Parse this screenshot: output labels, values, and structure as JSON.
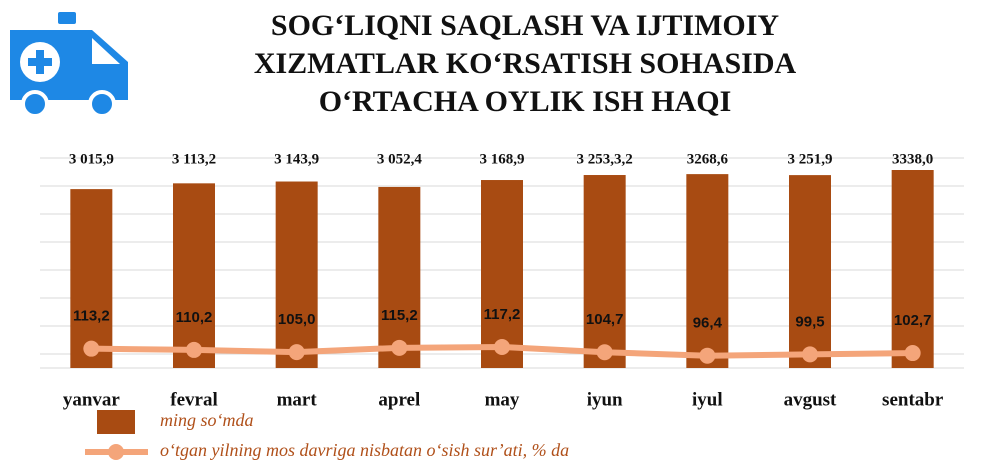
{
  "chart_data": {
    "type": "bar",
    "title": [
      "SOG‘LIQNI SAQLASH VA IJTIMOIY",
      "XIZMATLAR KO‘RSATISH SOHASIDA",
      "O‘RTACHA OYLIK ISH HAQI"
    ],
    "categories": [
      "yanvar",
      "fevral",
      "mart",
      "aprel",
      "may",
      "iyun",
      "iyul",
      "avgust",
      "sentabr"
    ],
    "series": [
      {
        "name": "ming so‘mda",
        "type": "bar",
        "color": "#a84b12",
        "values": [
          3015.9,
          3113.2,
          3143.9,
          3052.4,
          3168.9,
          3253.3,
          3268.6,
          3251.9,
          3338.0
        ],
        "value_labels": [
          "3 015,9",
          "3 113,2",
          "3 143,9",
          "3 052,4",
          "3 168,9",
          "3 253,3,2",
          "3268,6",
          "3 251,9",
          "3338,0"
        ]
      },
      {
        "name": "o‘tgan yilning mos davriga nisbatan o‘sish sur’ati, % da",
        "type": "line",
        "color": "#f4a57a",
        "values": [
          113.2,
          110.2,
          105.0,
          115.2,
          117.2,
          104.7,
          96.4,
          99.5,
          102.7
        ],
        "value_labels": [
          "113,2",
          "110,2",
          "105,0",
          "115,2",
          "117,2",
          "104,7",
          "96,4",
          "99,5",
          "102,7"
        ]
      }
    ],
    "grid": true
  }
}
